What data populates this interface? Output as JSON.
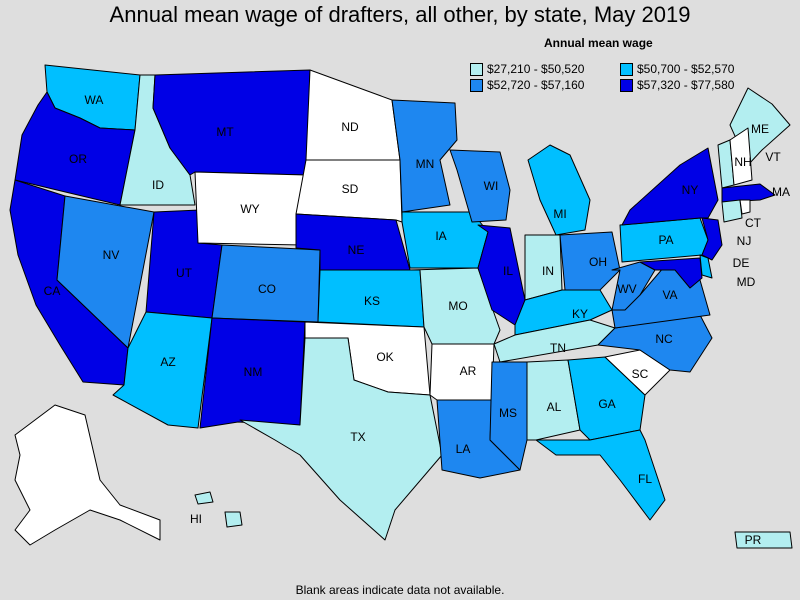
{
  "title": "Annual mean wage of drafters, all other, by state, May 2019",
  "legend": {
    "title": "Annual mean wage",
    "items": [
      {
        "label": "$27,210 - $50,520",
        "color": "#b3eef0"
      },
      {
        "label": "$50,700 - $52,570",
        "color": "#00bfff"
      },
      {
        "label": "$52,720 - $57,160",
        "color": "#1e87f0"
      },
      {
        "label": "$57,320 - $77,580",
        "color": "#0000e6"
      }
    ]
  },
  "footer": "Blank areas indicate data not available.",
  "colors": {
    "background": "#dedede",
    "no_data": "#ffffff"
  },
  "states": [
    {
      "abbr": "WA",
      "bin": 2
    },
    {
      "abbr": "OR",
      "bin": 4
    },
    {
      "abbr": "CA",
      "bin": 4
    },
    {
      "abbr": "ID",
      "bin": 1
    },
    {
      "abbr": "NV",
      "bin": 3
    },
    {
      "abbr": "UT",
      "bin": 4
    },
    {
      "abbr": "AZ",
      "bin": 2
    },
    {
      "abbr": "MT",
      "bin": 4
    },
    {
      "abbr": "WY",
      "bin": 0
    },
    {
      "abbr": "CO",
      "bin": 3
    },
    {
      "abbr": "NM",
      "bin": 4
    },
    {
      "abbr": "ND",
      "bin": 0
    },
    {
      "abbr": "SD",
      "bin": 0
    },
    {
      "abbr": "NE",
      "bin": 4
    },
    {
      "abbr": "KS",
      "bin": 2
    },
    {
      "abbr": "OK",
      "bin": 0
    },
    {
      "abbr": "TX",
      "bin": 1
    },
    {
      "abbr": "MN",
      "bin": 3
    },
    {
      "abbr": "IA",
      "bin": 2
    },
    {
      "abbr": "MO",
      "bin": 1
    },
    {
      "abbr": "AR",
      "bin": 0
    },
    {
      "abbr": "LA",
      "bin": 3
    },
    {
      "abbr": "WI",
      "bin": 3
    },
    {
      "abbr": "IL",
      "bin": 4
    },
    {
      "abbr": "MI",
      "bin": 2
    },
    {
      "abbr": "IN",
      "bin": 1
    },
    {
      "abbr": "OH",
      "bin": 3
    },
    {
      "abbr": "KY",
      "bin": 2
    },
    {
      "abbr": "TN",
      "bin": 1
    },
    {
      "abbr": "MS",
      "bin": 3
    },
    {
      "abbr": "AL",
      "bin": 1
    },
    {
      "abbr": "GA",
      "bin": 2
    },
    {
      "abbr": "FL",
      "bin": 2
    },
    {
      "abbr": "SC",
      "bin": 0
    },
    {
      "abbr": "NC",
      "bin": 3
    },
    {
      "abbr": "VA",
      "bin": 3
    },
    {
      "abbr": "WV",
      "bin": 3
    },
    {
      "abbr": "PA",
      "bin": 2
    },
    {
      "abbr": "NY",
      "bin": 4
    },
    {
      "abbr": "ME",
      "bin": 1
    },
    {
      "abbr": "VT",
      "bin": 1
    },
    {
      "abbr": "NH",
      "bin": 0
    },
    {
      "abbr": "MA",
      "bin": 4
    },
    {
      "abbr": "CT",
      "bin": 1
    },
    {
      "abbr": "RI",
      "bin": 0
    },
    {
      "abbr": "NJ",
      "bin": 4
    },
    {
      "abbr": "DE",
      "bin": 2
    },
    {
      "abbr": "MD",
      "bin": 4
    },
    {
      "abbr": "AK",
      "bin": 0
    },
    {
      "abbr": "HI",
      "bin": 1
    },
    {
      "abbr": "PR",
      "bin": 1
    }
  ]
}
